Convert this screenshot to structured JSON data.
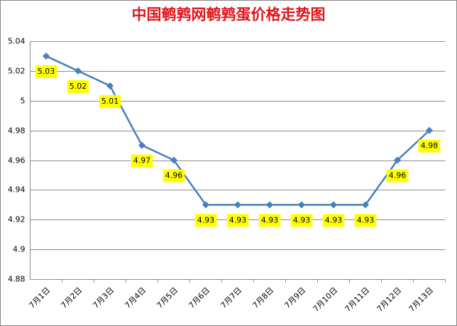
{
  "chart_data": {
    "type": "line",
    "title": "中国鹌鹑网鹌鹑蛋价格走势图",
    "categories": [
      "7月1日",
      "7月2日",
      "7月3日",
      "7月4日",
      "7月5日",
      "7月6日",
      "7月7日",
      "7月8日",
      "7月9日",
      "7月10日",
      "7月11日",
      "7月12日",
      "7月13日"
    ],
    "values": [
      5.03,
      5.02,
      5.01,
      4.97,
      4.96,
      4.93,
      4.93,
      4.93,
      4.93,
      4.93,
      4.93,
      4.96,
      4.98
    ],
    "color": "#4a7ebb",
    "label_color": "#ffff00",
    "ylim": [
      4.88,
      5.04
    ],
    "yticks": [
      4.88,
      4.9,
      4.92,
      4.94,
      4.96,
      4.98,
      5,
      5.02,
      5.04
    ],
    "grid": true
  }
}
